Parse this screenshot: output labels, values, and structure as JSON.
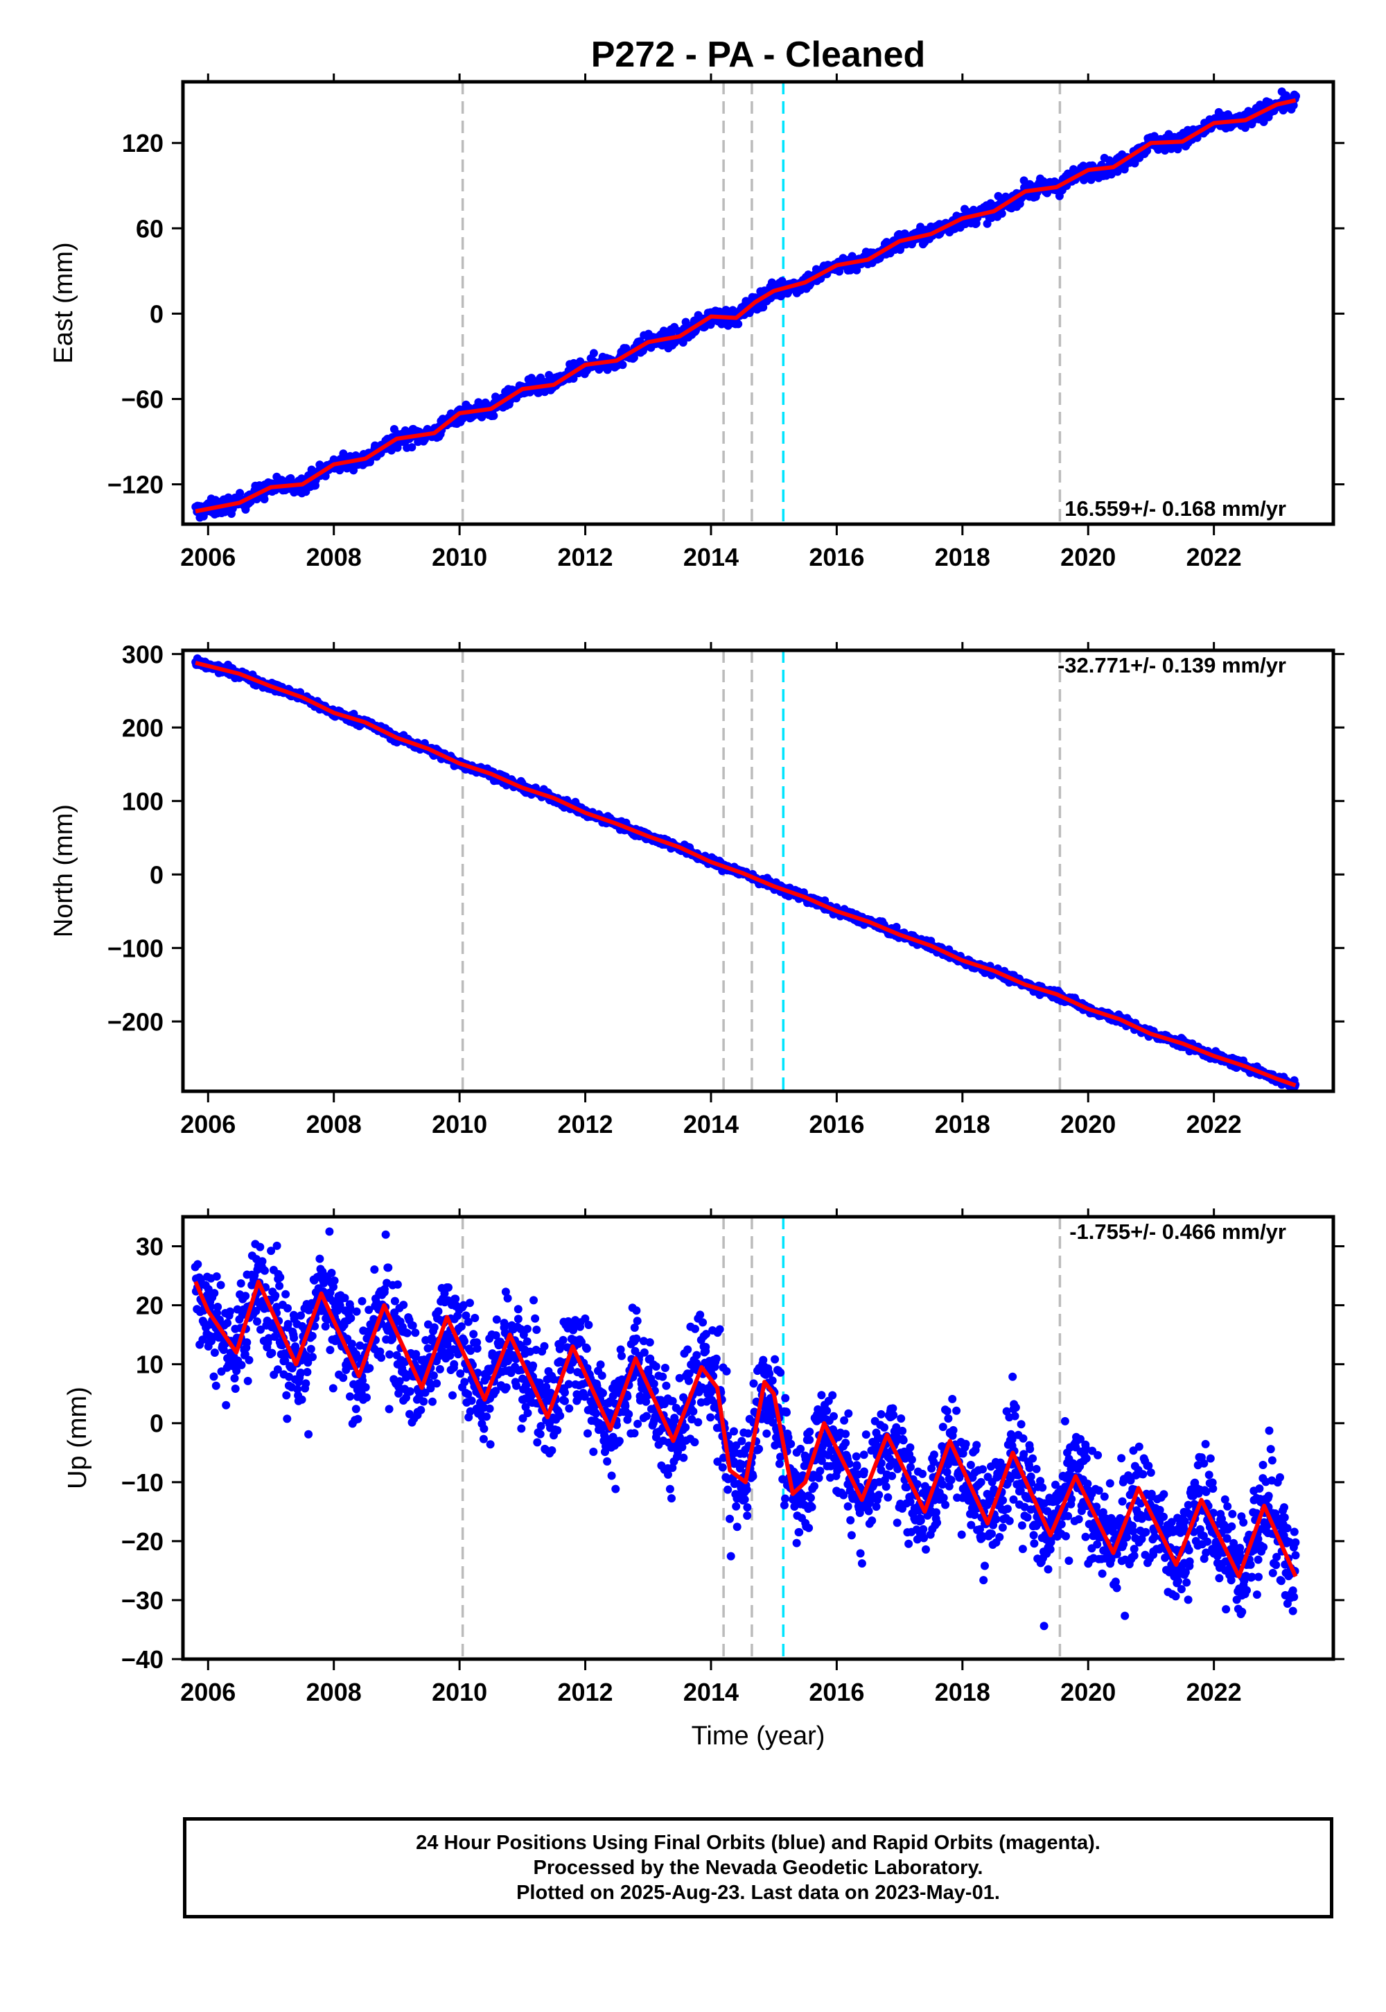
{
  "title": "P272  - PA - Cleaned",
  "colors": {
    "final_orbits": "#0000ff",
    "model_fit": "#ff0000",
    "event_line": "#bbbbbb",
    "event_line_special": "#00e5ff"
  },
  "chart_data": [
    {
      "type": "scatter",
      "id": "east",
      "xlabel": "",
      "ylabel": "East (mm)",
      "xlim": [
        2005.6,
        2023.9
      ],
      "ylim": [
        -148,
        163
      ],
      "xticks": [
        "2006",
        "2008",
        "2010",
        "2012",
        "2014",
        "2016",
        "2018",
        "2020",
        "2022"
      ],
      "yticks": [
        "−120",
        "−60",
        "0",
        "60",
        "120"
      ],
      "rate_label": "16.559+/- 0.168 mm/yr",
      "rate_position": "bottom-right",
      "series": [
        {
          "kind": "final-orbit-points",
          "color": "#0000ff"
        },
        {
          "kind": "model-fit",
          "color": "#ff0000"
        }
      ],
      "fit_points": [
        [
          2005.8,
          -139
        ],
        [
          2006.5,
          -133
        ],
        [
          2007.0,
          -122
        ],
        [
          2007.5,
          -120
        ],
        [
          2008.0,
          -106
        ],
        [
          2008.5,
          -102
        ],
        [
          2009.0,
          -88
        ],
        [
          2009.6,
          -84
        ],
        [
          2010.0,
          -70
        ],
        [
          2010.5,
          -67
        ],
        [
          2011.0,
          -53
        ],
        [
          2011.5,
          -50
        ],
        [
          2012.0,
          -36
        ],
        [
          2012.5,
          -33
        ],
        [
          2013.0,
          -20
        ],
        [
          2013.5,
          -16
        ],
        [
          2014.0,
          -2
        ],
        [
          2014.4,
          -3
        ],
        [
          2014.7,
          8
        ],
        [
          2015.0,
          16
        ],
        [
          2015.5,
          22
        ],
        [
          2016.0,
          34
        ],
        [
          2016.5,
          38
        ],
        [
          2017.0,
          51
        ],
        [
          2017.5,
          56
        ],
        [
          2018.0,
          67
        ],
        [
          2018.5,
          72
        ],
        [
          2019.0,
          86
        ],
        [
          2019.5,
          89
        ],
        [
          2020.0,
          101
        ],
        [
          2020.4,
          103
        ],
        [
          2021.0,
          120
        ],
        [
          2021.5,
          121
        ],
        [
          2022.0,
          134
        ],
        [
          2022.5,
          136
        ],
        [
          2023.0,
          147
        ],
        [
          2023.3,
          150
        ]
      ],
      "event_lines": [
        {
          "x": 2010.05,
          "style": "gray"
        },
        {
          "x": 2014.2,
          "style": "gray"
        },
        {
          "x": 2014.65,
          "style": "gray"
        },
        {
          "x": 2015.15,
          "style": "cyan"
        },
        {
          "x": 2019.55,
          "style": "gray"
        }
      ]
    },
    {
      "type": "scatter",
      "id": "north",
      "xlabel": "",
      "ylabel": "North (mm)",
      "xlim": [
        2005.6,
        2023.9
      ],
      "ylim": [
        -295,
        305
      ],
      "xticks": [
        "2006",
        "2008",
        "2010",
        "2012",
        "2014",
        "2016",
        "2018",
        "2020",
        "2022"
      ],
      "yticks": [
        "−200",
        "−100",
        "0",
        "100",
        "200",
        "300"
      ],
      "rate_label": "-32.771+/- 0.139 mm/yr",
      "rate_position": "top-right",
      "series": [
        {
          "kind": "final-orbit-points",
          "color": "#0000ff"
        },
        {
          "kind": "model-fit",
          "color": "#ff0000"
        }
      ],
      "fit_points": [
        [
          2005.8,
          288
        ],
        [
          2006.5,
          273
        ],
        [
          2007.0,
          256
        ],
        [
          2007.5,
          241
        ],
        [
          2008.0,
          220
        ],
        [
          2008.5,
          207
        ],
        [
          2009.0,
          186
        ],
        [
          2009.5,
          171
        ],
        [
          2010.0,
          151
        ],
        [
          2010.5,
          137
        ],
        [
          2011.0,
          118
        ],
        [
          2011.5,
          104
        ],
        [
          2012.0,
          84
        ],
        [
          2012.5,
          69
        ],
        [
          2013.0,
          52
        ],
        [
          2013.5,
          37
        ],
        [
          2014.0,
          17
        ],
        [
          2014.5,
          2
        ],
        [
          2015.0,
          -16
        ],
        [
          2015.5,
          -31
        ],
        [
          2016.0,
          -50
        ],
        [
          2016.5,
          -64
        ],
        [
          2017.0,
          -82
        ],
        [
          2017.5,
          -97
        ],
        [
          2018.0,
          -117
        ],
        [
          2018.5,
          -131
        ],
        [
          2019.0,
          -150
        ],
        [
          2019.5,
          -163
        ],
        [
          2020.0,
          -183
        ],
        [
          2020.5,
          -197
        ],
        [
          2021.0,
          -217
        ],
        [
          2021.5,
          -230
        ],
        [
          2022.0,
          -247
        ],
        [
          2022.5,
          -261
        ],
        [
          2023.0,
          -278
        ],
        [
          2023.3,
          -287
        ]
      ],
      "event_lines": [
        {
          "x": 2010.05,
          "style": "gray"
        },
        {
          "x": 2014.2,
          "style": "gray"
        },
        {
          "x": 2014.65,
          "style": "gray"
        },
        {
          "x": 2015.15,
          "style": "cyan"
        },
        {
          "x": 2019.55,
          "style": "gray"
        }
      ]
    },
    {
      "type": "scatter",
      "id": "up",
      "xlabel": "Time (year)",
      "ylabel": "Up (mm)",
      "xlim": [
        2005.6,
        2023.9
      ],
      "ylim": [
        -40,
        35
      ],
      "xticks": [
        "2006",
        "2008",
        "2010",
        "2012",
        "2014",
        "2016",
        "2018",
        "2020",
        "2022"
      ],
      "yticks": [
        "−40",
        "−30",
        "−20",
        "−10",
        "0",
        "10",
        "20",
        "30"
      ],
      "rate_label": "-1.755+/- 0.466 mm/yr",
      "rate_position": "top-right",
      "series": [
        {
          "kind": "final-orbit-points",
          "color": "#0000ff"
        },
        {
          "kind": "model-fit",
          "color": "#ff0000"
        }
      ],
      "fit_points": [
        [
          2005.8,
          24
        ],
        [
          2006.0,
          19
        ],
        [
          2006.45,
          12
        ],
        [
          2006.8,
          24
        ],
        [
          2007.4,
          10
        ],
        [
          2007.8,
          22
        ],
        [
          2008.4,
          8
        ],
        [
          2008.8,
          20
        ],
        [
          2009.4,
          6
        ],
        [
          2009.8,
          18
        ],
        [
          2010.4,
          4
        ],
        [
          2010.8,
          15
        ],
        [
          2011.4,
          1
        ],
        [
          2011.8,
          13
        ],
        [
          2012.4,
          -1
        ],
        [
          2012.8,
          11
        ],
        [
          2013.4,
          -3
        ],
        [
          2013.85,
          9.5
        ],
        [
          2014.1,
          6
        ],
        [
          2014.3,
          -8
        ],
        [
          2014.55,
          -10
        ],
        [
          2014.85,
          7
        ],
        [
          2015.0,
          5
        ],
        [
          2015.3,
          -12
        ],
        [
          2015.5,
          -10
        ],
        [
          2015.8,
          0
        ],
        [
          2016.4,
          -13
        ],
        [
          2016.8,
          -2
        ],
        [
          2017.4,
          -15
        ],
        [
          2017.8,
          -3
        ],
        [
          2018.4,
          -17
        ],
        [
          2018.8,
          -5
        ],
        [
          2019.4,
          -19
        ],
        [
          2019.8,
          -9
        ],
        [
          2020.4,
          -22
        ],
        [
          2020.8,
          -11
        ],
        [
          2021.4,
          -24
        ],
        [
          2021.8,
          -13
        ],
        [
          2022.4,
          -26
        ],
        [
          2022.8,
          -14
        ],
        [
          2023.3,
          -26
        ]
      ],
      "event_lines": [
        {
          "x": 2010.05,
          "style": "gray"
        },
        {
          "x": 2014.2,
          "style": "gray"
        },
        {
          "x": 2014.65,
          "style": "gray"
        },
        {
          "x": 2015.15,
          "style": "cyan"
        },
        {
          "x": 2019.55,
          "style": "gray"
        }
      ]
    }
  ],
  "footer": {
    "line1": "24 Hour Positions Using Final Orbits (blue) and Rapid Orbits (magenta).",
    "line2": "Processed by the Nevada Geodetic Laboratory.",
    "line3": "Plotted on 2025-Aug-23. Last data on 2023-May-01."
  }
}
